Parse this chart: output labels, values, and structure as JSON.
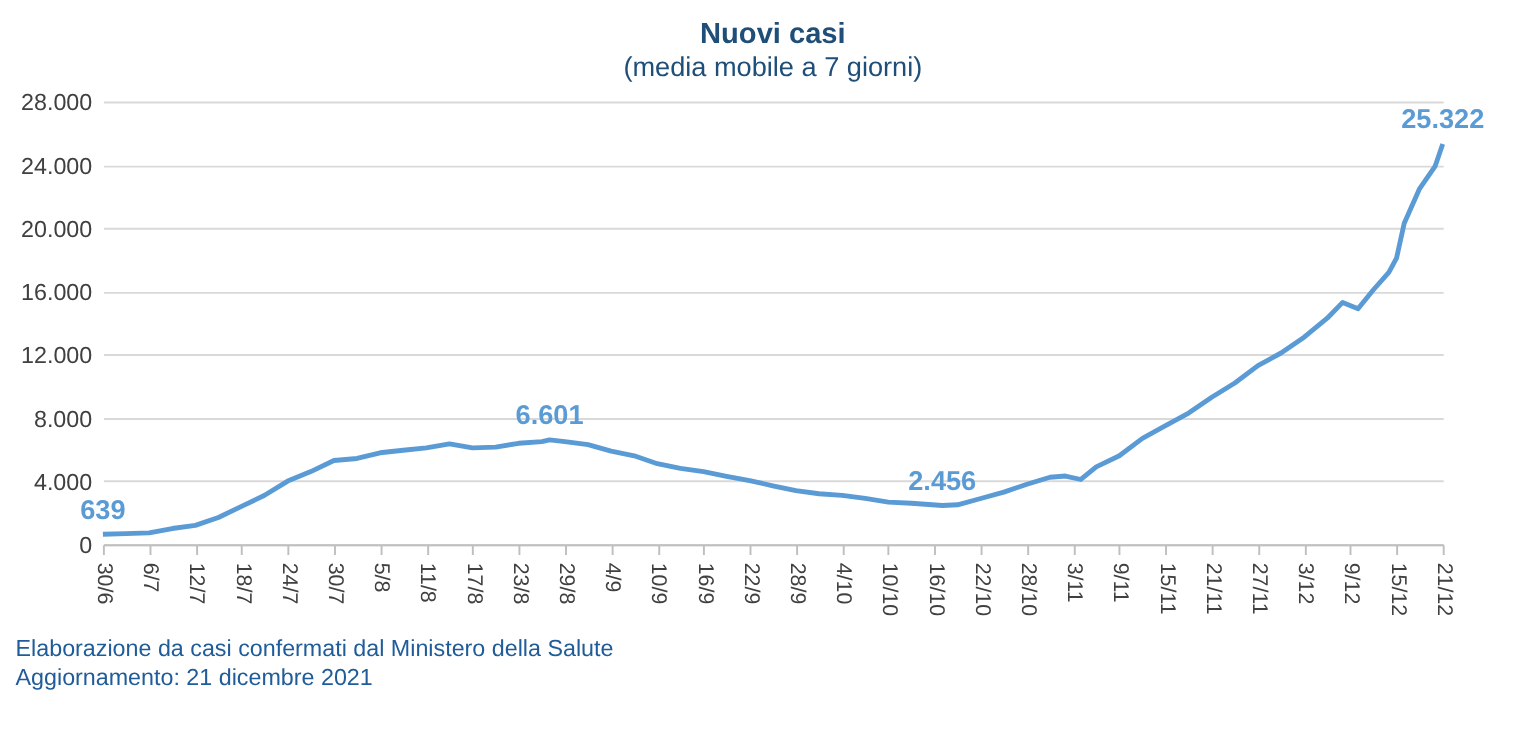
{
  "chart_data": {
    "type": "line",
    "title": "Nuovi casi",
    "subtitle": "(media mobile a 7 giorni)",
    "x": [
      "2021-06-30",
      "2021-07-03",
      "2021-07-06",
      "2021-07-09",
      "2021-07-12",
      "2021-07-15",
      "2021-07-18",
      "2021-07-21",
      "2021-07-24",
      "2021-07-27",
      "2021-07-30",
      "2021-08-02",
      "2021-08-05",
      "2021-08-08",
      "2021-08-11",
      "2021-08-14",
      "2021-08-17",
      "2021-08-20",
      "2021-08-23",
      "2021-08-26",
      "2021-08-27",
      "2021-08-29",
      "2021-09-01",
      "2021-09-04",
      "2021-09-07",
      "2021-09-10",
      "2021-09-13",
      "2021-09-16",
      "2021-09-19",
      "2021-09-22",
      "2021-09-25",
      "2021-09-28",
      "2021-10-01",
      "2021-10-04",
      "2021-10-07",
      "2021-10-10",
      "2021-10-13",
      "2021-10-17",
      "2021-10-19",
      "2021-10-22",
      "2021-10-25",
      "2021-10-28",
      "2021-10-31",
      "2021-11-02",
      "2021-11-04",
      "2021-11-06",
      "2021-11-09",
      "2021-11-12",
      "2021-11-15",
      "2021-11-18",
      "2021-11-21",
      "2021-11-24",
      "2021-11-27",
      "2021-11-30",
      "2021-12-03",
      "2021-12-06",
      "2021-12-08",
      "2021-12-10",
      "2021-12-12",
      "2021-12-14",
      "2021-12-15",
      "2021-12-16",
      "2021-12-18",
      "2021-12-20",
      "2021-12-21"
    ],
    "series": [
      {
        "color": "#5b9bd5",
        "values": [
          639,
          680,
          720,
          1000,
          1200,
          1700,
          2400,
          3100,
          4000,
          4600,
          5300,
          5430,
          5790,
          5950,
          6100,
          6350,
          6100,
          6150,
          6390,
          6500,
          6601,
          6500,
          6300,
          5900,
          5600,
          5100,
          4800,
          4600,
          4300,
          4030,
          3700,
          3400,
          3200,
          3100,
          2900,
          2670,
          2600,
          2456,
          2500,
          2900,
          3300,
          3800,
          4240,
          4320,
          4100,
          4900,
          5600,
          6700,
          7500,
          8300,
          9300,
          10200,
          11300,
          12100,
          13100,
          14300,
          15300,
          14900,
          16100,
          17200,
          18100,
          20300,
          22500,
          23900,
          25322
        ]
      }
    ],
    "xlim": [
      "2021-06-30",
      "2021-12-21"
    ],
    "xticks": [
      {
        "value": "2021-06-30",
        "label": "30/6"
      },
      {
        "value": "2021-07-06",
        "label": "6/7"
      },
      {
        "value": "2021-07-12",
        "label": "12/7"
      },
      {
        "value": "2021-07-18",
        "label": "18/7"
      },
      {
        "value": "2021-07-24",
        "label": "24/7"
      },
      {
        "value": "2021-07-30",
        "label": "30/7"
      },
      {
        "value": "2021-08-05",
        "label": "5/8"
      },
      {
        "value": "2021-08-11",
        "label": "11/8"
      },
      {
        "value": "2021-08-17",
        "label": "17/8"
      },
      {
        "value": "2021-08-23",
        "label": "23/8"
      },
      {
        "value": "2021-08-29",
        "label": "29/8"
      },
      {
        "value": "2021-09-04",
        "label": "4/9"
      },
      {
        "value": "2021-09-10",
        "label": "10/9"
      },
      {
        "value": "2021-09-16",
        "label": "16/9"
      },
      {
        "value": "2021-09-22",
        "label": "22/9"
      },
      {
        "value": "2021-09-28",
        "label": "28/9"
      },
      {
        "value": "2021-10-04",
        "label": "4/10"
      },
      {
        "value": "2021-10-10",
        "label": "10/10"
      },
      {
        "value": "2021-10-16",
        "label": "16/10"
      },
      {
        "value": "2021-10-22",
        "label": "22/10"
      },
      {
        "value": "2021-10-28",
        "label": "28/10"
      },
      {
        "value": "2021-11-03",
        "label": "3/11"
      },
      {
        "value": "2021-11-09",
        "label": "9/11"
      },
      {
        "value": "2021-11-15",
        "label": "15/11"
      },
      {
        "value": "2021-11-21",
        "label": "21/11"
      },
      {
        "value": "2021-11-27",
        "label": "27/11"
      },
      {
        "value": "2021-12-03",
        "label": "3/12"
      },
      {
        "value": "2021-12-09",
        "label": "9/12"
      },
      {
        "value": "2021-12-15",
        "label": "15/12"
      },
      {
        "value": "2021-12-21",
        "label": "21/12"
      }
    ],
    "ylim": [
      0,
      28000
    ],
    "yticks": [
      0,
      {
        "value": 4000,
        "label": "4.000"
      },
      {
        "value": 8000,
        "label": "8.000"
      },
      {
        "value": 12000,
        "label": "12.000"
      },
      {
        "value": 16000,
        "label": "16.000"
      },
      {
        "value": 20000,
        "label": "20.000"
      },
      {
        "value": 24000,
        "label": "24.000"
      },
      {
        "value": 28000,
        "label": "28.000"
      }
    ],
    "grid": "y",
    "legend": false,
    "marker": "none",
    "line_style": "solid",
    "annotations": [
      {
        "text": "639",
        "x": "2021-06-30",
        "y": 639
      },
      {
        "text": "6.601",
        "x": "2021-08-27",
        "y": 6601
      },
      {
        "text": "2.456",
        "x": "2021-10-17",
        "y": 2456
      },
      {
        "text": "25.322",
        "x": "2021-12-21",
        "y": 25322
      },
      "Elaborazione da casi confermati dal Ministero della Salute",
      "Aggiornamento: 21 dicembre 2021"
    ]
  }
}
